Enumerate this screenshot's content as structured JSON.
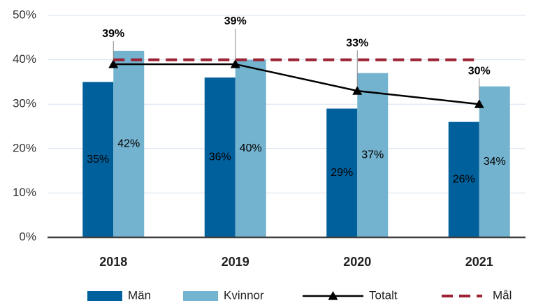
{
  "chart_data": {
    "type": "bar",
    "categories": [
      "2018",
      "2019",
      "2020",
      "2021"
    ],
    "series": [
      {
        "name": "Män",
        "type": "bar",
        "color": "#00609c",
        "values": [
          35,
          36,
          29,
          26
        ],
        "value_labels": [
          "35%",
          "36%",
          "29%",
          "26%"
        ]
      },
      {
        "name": "Kvinnor",
        "type": "bar",
        "color": "#74b3cf",
        "values": [
          42,
          40,
          37,
          34
        ],
        "value_labels": [
          "42%",
          "40%",
          "37%",
          "34%"
        ]
      },
      {
        "name": "Totalt",
        "type": "line",
        "color": "#000000",
        "marker": "triangle",
        "values": [
          39,
          39,
          33,
          30
        ],
        "value_labels": [
          "39%",
          "39%",
          "33%",
          "30%"
        ]
      },
      {
        "name": "Mål",
        "type": "line",
        "color": "#9b2335",
        "dashed": true,
        "values": [
          40,
          40,
          40,
          40
        ]
      }
    ],
    "ylim": [
      0,
      50
    ],
    "yticks": [
      {
        "value": 0,
        "label": "0%"
      },
      {
        "value": 10,
        "label": "10%"
      },
      {
        "value": 20,
        "label": "20%"
      },
      {
        "value": 30,
        "label": "30%"
      },
      {
        "value": 40,
        "label": "40%"
      },
      {
        "value": 50,
        "label": "50%"
      }
    ],
    "grid": true,
    "legend": "bottom"
  }
}
